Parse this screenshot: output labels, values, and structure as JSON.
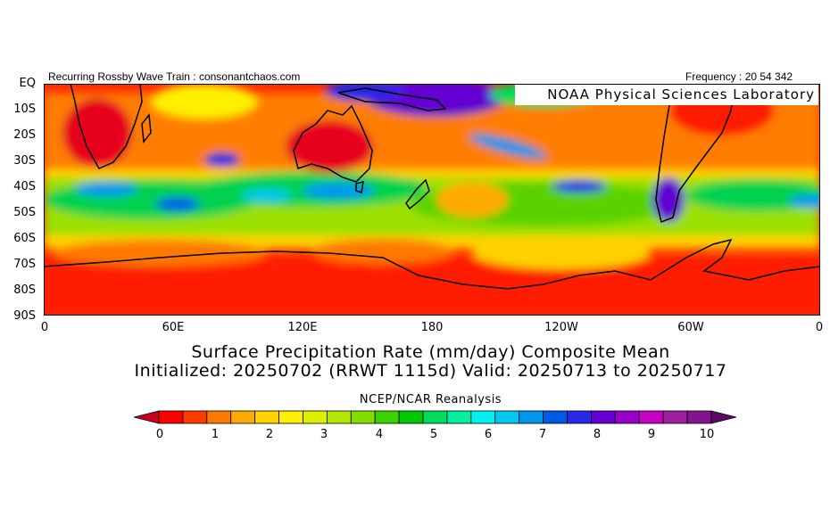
{
  "header": {
    "left_text": "Recurring Rossby Wave Train : consonantchaos.com",
    "right_text": "Frequency : 20 54 342"
  },
  "credit": "NOAA  Physical  Sciences  Laboratory",
  "map": {
    "lat_labels": [
      "EQ",
      "10S",
      "20S",
      "30S",
      "40S",
      "50S",
      "60S",
      "70S",
      "80S",
      "90S"
    ],
    "lon_labels": [
      "0",
      "60E",
      "120E",
      "180",
      "120W",
      "60W",
      "0"
    ]
  },
  "title": {
    "line1": "Surface Precipitation Rate (mm/day) Composite Mean",
    "line2": "Initialized: 20250702 (RRWT 1115d) Valid: 20250713 to 20250717"
  },
  "source": "NCEP/NCAR Reanalysis",
  "colorbar": {
    "labels": [
      "0",
      "1",
      "2",
      "3",
      "4",
      "5",
      "6",
      "7",
      "8",
      "9",
      "10"
    ],
    "colors": [
      "#c8001e",
      "#ff0000",
      "#ff3c00",
      "#ff7800",
      "#ffaa00",
      "#ffd200",
      "#fff000",
      "#dcf000",
      "#b4e600",
      "#82dc00",
      "#3cd200",
      "#00c800",
      "#00dc5a",
      "#00f0a0",
      "#00f0f0",
      "#00c8f0",
      "#0096f0",
      "#005ae6",
      "#2828e6",
      "#6400d2",
      "#9600c8",
      "#c800c8",
      "#a01ea0",
      "#82148c",
      "#5a0a64"
    ]
  }
}
